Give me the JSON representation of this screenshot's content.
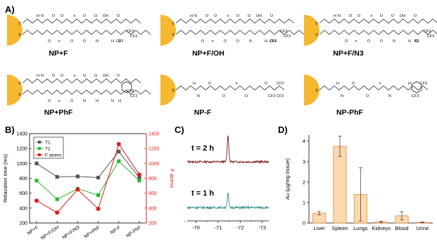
{
  "panels": {
    "a_label": "A)",
    "b_label": "B)",
    "c_label": "C)",
    "d_label": "D)"
  },
  "structures": [
    {
      "name": "NP+F",
      "labels": [
        "S",
        "S",
        "H",
        "N",
        "O",
        "O",
        "n",
        "O",
        "O",
        "OH",
        "O",
        "O",
        "n",
        "O",
        "O",
        "N",
        "H",
        "CF3",
        "CF3",
        "CF3",
        "O"
      ]
    },
    {
      "name": "NP+F/OH",
      "labels": [
        "S",
        "S",
        "H",
        "N",
        "O",
        "O",
        "n",
        "O",
        "O",
        "OH",
        "O",
        "O",
        "n",
        "O",
        "O",
        "N",
        "H",
        "OH",
        "CF3",
        "CF3",
        "CF3",
        "O"
      ]
    },
    {
      "name": "NP+F/N3",
      "labels": [
        "S",
        "S",
        "H",
        "N",
        "O",
        "O",
        "n",
        "O",
        "O",
        "OH",
        "O",
        "O",
        "n",
        "O",
        "O",
        "N",
        "H",
        "N3",
        "CF3",
        "CF3",
        "Cl",
        "O"
      ]
    },
    {
      "name": "NP+PhF",
      "labels": [
        "S",
        "S",
        "H",
        "N",
        "O",
        "O",
        "n",
        "O",
        "O",
        "OH",
        "O",
        "O",
        "n",
        "O",
        "N",
        "H",
        "N",
        "H",
        "CF3",
        "CF3"
      ]
    },
    {
      "name": "NP-F",
      "labels": [
        "S",
        "H",
        "N",
        "O",
        "O",
        "n",
        "O",
        "O",
        "CF3",
        "CF3",
        "CF3"
      ]
    },
    {
      "name": "NP-PhF",
      "labels": [
        "S",
        "H",
        "N",
        "O",
        "O",
        "n",
        "N",
        "H",
        "CF3",
        "CF3"
      ]
    }
  ],
  "chart_data": [
    {
      "panel": "B",
      "type": "line",
      "categories": [
        "NP+F",
        "NP+F/OH",
        "NP+F/N3",
        "NP+PhF",
        "NP-F",
        "NP-PhF"
      ],
      "ylabel": "Relaxation time (ms)",
      "y2label": "F atoms",
      "ylim": [
        200,
        1400
      ],
      "y2lim": [
        200,
        1400
      ],
      "yticks": [
        200,
        400,
        600,
        800,
        1000,
        1200,
        1400
      ],
      "y2ticks": [
        200,
        400,
        600,
        800,
        1000,
        1200,
        1400
      ],
      "series": [
        {
          "name": "T1",
          "axis": "left",
          "color": "#555555",
          "marker": "square",
          "values": [
            1000,
            820,
            825,
            810,
            1160,
            810
          ]
        },
        {
          "name": "T2",
          "axis": "left",
          "color": "#2bb82b",
          "marker": "square",
          "values": [
            770,
            520,
            660,
            575,
            1030,
            770
          ]
        },
        {
          "name": "F atoms",
          "axis": "right",
          "color": "#e01b1b",
          "marker": "circle",
          "values": [
            500,
            340,
            650,
            390,
            1260,
            850
          ]
        }
      ],
      "legend": {
        "position": "top-left",
        "entries": [
          "T1",
          "T2",
          "F atoms"
        ]
      }
    },
    {
      "panel": "C",
      "type": "line",
      "xlabel": "",
      "xlim": [
        -69.6,
        -73.3
      ],
      "xticks": [
        -70,
        -71,
        -72,
        -73
      ],
      "series": [
        {
          "name": "t = 2 h",
          "color": "#7a1c1c",
          "peak_x": -71.45,
          "peak_height": 1.0
        },
        {
          "name": "t = 1 h",
          "color": "#2e8a87",
          "peak_x": -71.45,
          "peak_height": 0.45
        }
      ],
      "labels": [
        "t = 2 h",
        "t = 1 h"
      ]
    },
    {
      "panel": "D",
      "type": "bar",
      "categories": [
        "Liver",
        "Spleen",
        "Lungs",
        "Kidneys",
        "Blood",
        "Urine"
      ],
      "values": [
        0.48,
        3.75,
        1.4,
        0.05,
        0.35,
        0.03
      ],
      "errors": [
        0.08,
        0.5,
        1.3,
        0.04,
        0.2,
        0.02
      ],
      "ylabel": "Au (µg/mg tissue)",
      "ylim": [
        0,
        4.3
      ],
      "yticks": [
        0,
        1,
        2,
        3,
        4
      ],
      "bar_color": "#fbd9b0",
      "edge_color": "#e08a3a"
    }
  ]
}
